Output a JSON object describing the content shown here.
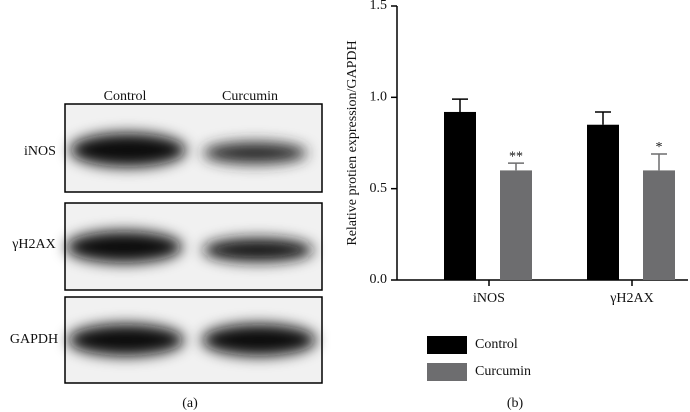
{
  "blot": {
    "lanes": [
      "Control",
      "Curcumin"
    ],
    "rows": [
      "iNOS",
      "γH2AX",
      "GAPDH"
    ],
    "panel_label": "(a)"
  },
  "chart_data": {
    "type": "bar",
    "panel_label": "(b)",
    "y_label": "Relative protien expression/GAPDH",
    "categories": [
      "iNOS",
      "γH2AX"
    ],
    "series": [
      {
        "name": "Control",
        "color": "#000000",
        "values": [
          0.92,
          0.85
        ],
        "errors": [
          0.07,
          0.07
        ]
      },
      {
        "name": "Curcumin",
        "color": "#6d6d6f",
        "values": [
          0.6,
          0.6
        ],
        "errors": [
          0.04,
          0.09
        ]
      }
    ],
    "annotations": [
      {
        "label": "**",
        "category": "iNOS",
        "series": "Curcumin"
      },
      {
        "label": "*",
        "category": "γH2AX",
        "series": "Curcumin"
      }
    ],
    "ylim": [
      0,
      1.5
    ],
    "yticks": [
      {
        "value": 0,
        "label": "0.0"
      },
      {
        "value": 0.5,
        "label": "0.5"
      },
      {
        "value": 1,
        "label": "1.0"
      },
      {
        "value": 1.5,
        "label": "1.5"
      }
    ]
  }
}
